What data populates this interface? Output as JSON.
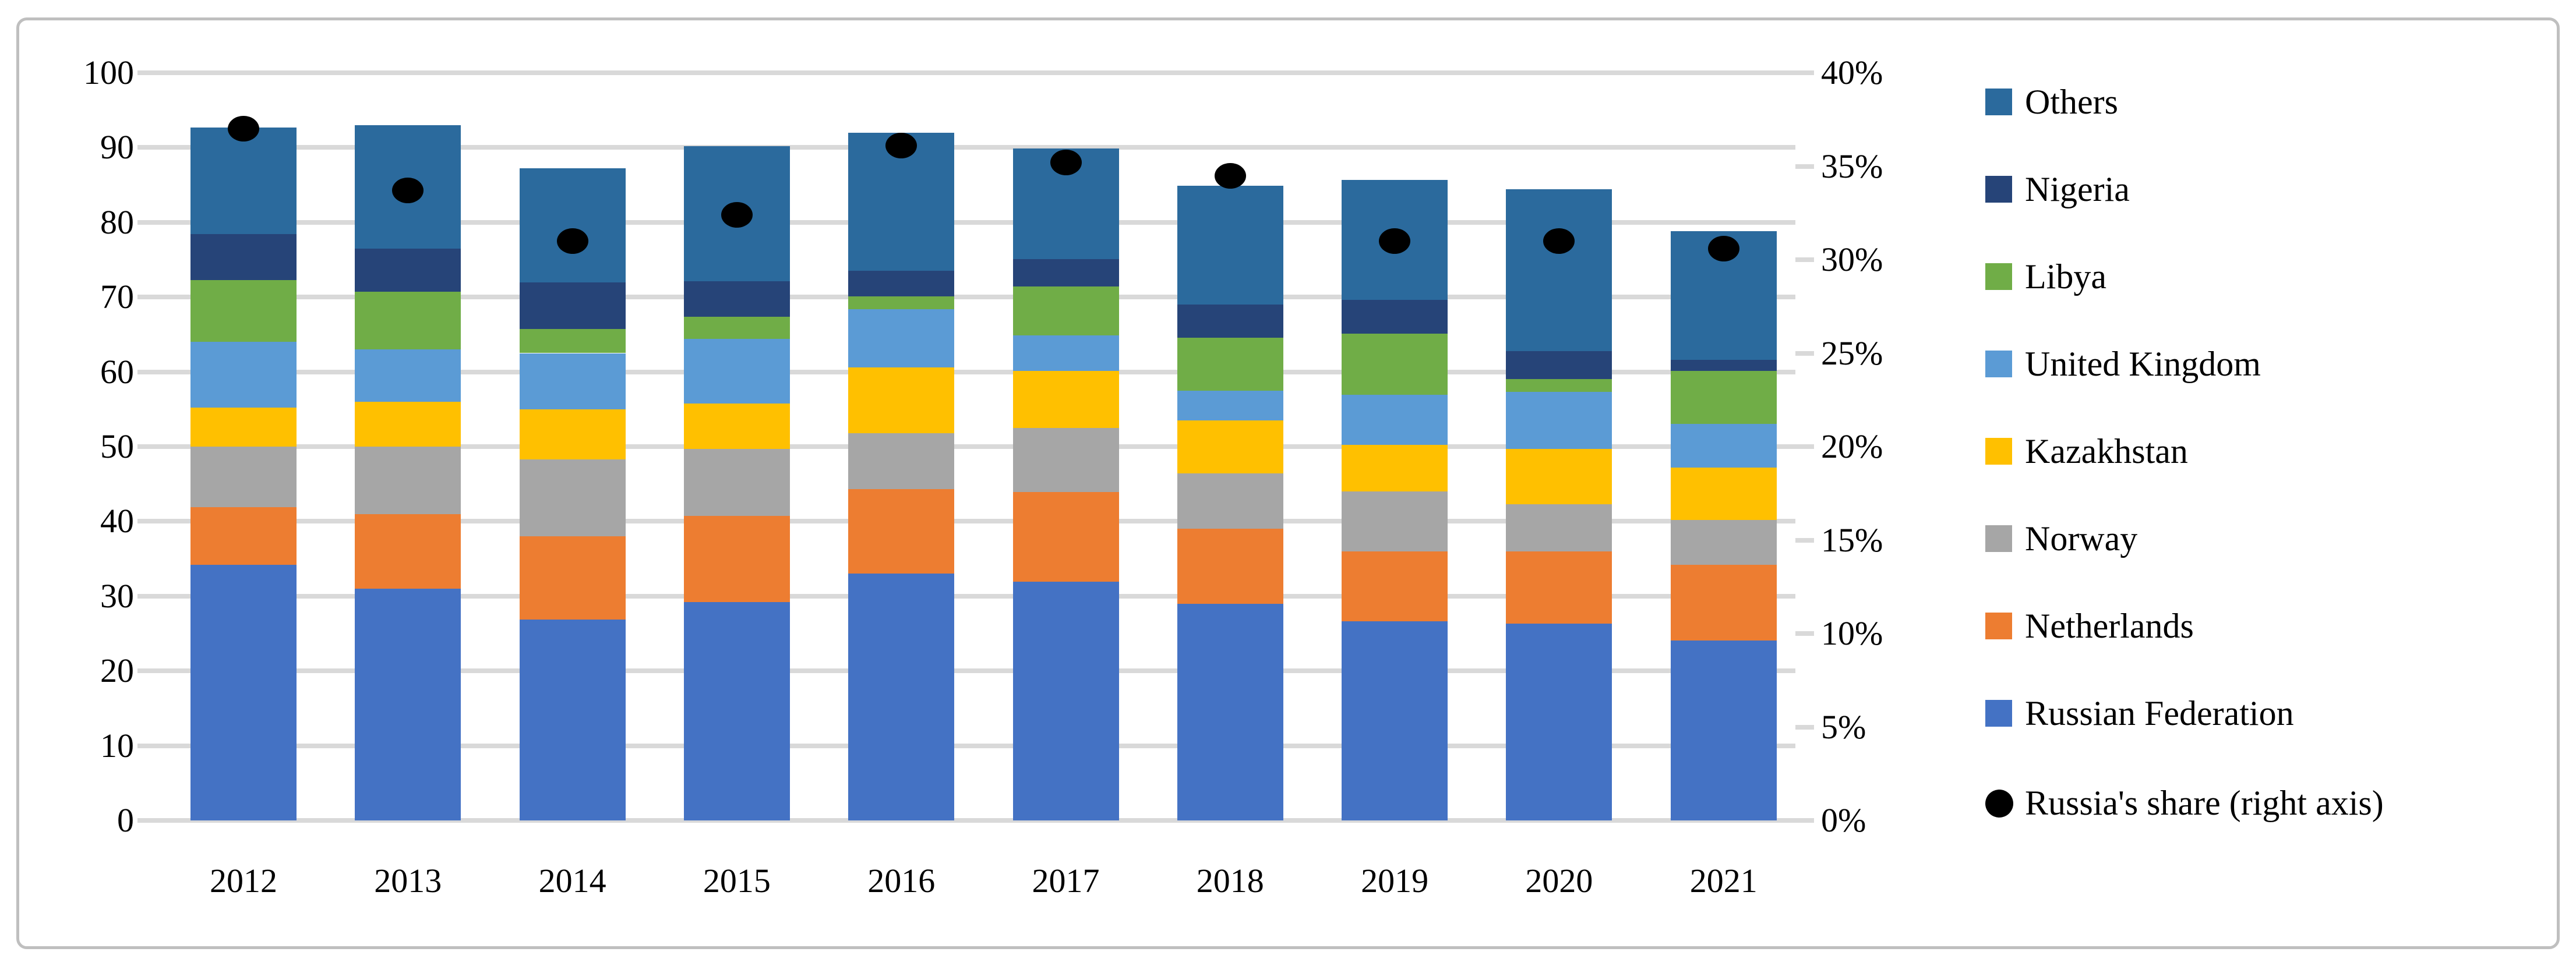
{
  "figure": {
    "kind": "stacked-column-chart-with-secondary-axis",
    "background": "#ffffff",
    "frame_color": "#BFBFBF",
    "gridline_color": "#D9D9D9",
    "text_color": "#000000"
  },
  "chart_data": {
    "type": "bar",
    "subtype": "stacked-columns-with-dot-markers",
    "title": "",
    "xlabel": "",
    "ylabel": "",
    "categories": [
      "2012",
      "2013",
      "2014",
      "2015",
      "2016",
      "2017",
      "2018",
      "2019",
      "2020",
      "2021"
    ],
    "series": [
      {
        "name": "russian-federation",
        "label": "Russian Federation",
        "color": "#4472C4",
        "values": [
          34.2,
          31.0,
          26.9,
          29.2,
          33.0,
          31.9,
          29.0,
          26.6,
          26.3,
          24.1
        ]
      },
      {
        "name": "netherlands",
        "label": "Netherlands",
        "color": "#ED7D31",
        "values": [
          7.7,
          10.0,
          11.1,
          11.5,
          11.3,
          12.0,
          10.0,
          9.4,
          9.7,
          10.1
        ]
      },
      {
        "name": "norway",
        "label": "Norway",
        "color": "#A6A6A6",
        "values": [
          8.1,
          9.0,
          10.3,
          9.0,
          7.5,
          8.6,
          7.4,
          8.0,
          6.3,
          6.0
        ]
      },
      {
        "name": "kazakhstan",
        "label": "Kazakhstan",
        "color": "#FFC000",
        "values": [
          5.2,
          6.0,
          6.7,
          6.1,
          8.8,
          7.6,
          7.1,
          6.2,
          7.4,
          7.0
        ]
      },
      {
        "name": "united-kingdom",
        "label": "United Kingdom",
        "color": "#5B9BD5",
        "values": [
          8.8,
          7.0,
          7.5,
          8.6,
          7.8,
          4.8,
          4.0,
          6.7,
          7.6,
          5.8
        ]
      },
      {
        "name": "libya",
        "label": "Libya",
        "color": "#70AD47",
        "values": [
          8.3,
          7.7,
          3.2,
          3.0,
          1.7,
          6.5,
          7.1,
          8.2,
          1.7,
          7.1
        ]
      },
      {
        "name": "nigeria",
        "label": "Nigeria",
        "color": "#264478",
        "values": [
          6.1,
          5.8,
          6.3,
          4.7,
          3.4,
          3.7,
          4.4,
          4.5,
          3.8,
          1.5
        ]
      },
      {
        "name": "others",
        "label": "Others",
        "color": "#2B6A9D",
        "values": [
          14.3,
          16.5,
          15.2,
          18.1,
          18.5,
          14.8,
          15.9,
          16.1,
          21.6,
          17.2
        ]
      }
    ],
    "dot_series": {
      "name": "russia-share",
      "label": "Russia's share (right axis)",
      "color": "#000000",
      "axis": "right",
      "values_pct": [
        37.0,
        33.7,
        31.0,
        32.4,
        36.1,
        35.2,
        34.5,
        31.0,
        31.0,
        30.6
      ]
    },
    "left_axis": {
      "min": 0,
      "max": 100,
      "step": 10,
      "tick_labels": [
        "100",
        "90",
        "80",
        "70",
        "60",
        "50",
        "40",
        "30",
        "20",
        "10",
        "0"
      ]
    },
    "right_axis": {
      "min": 0,
      "max": 40,
      "step": 5,
      "tick_labels": [
        "40%",
        "35%",
        "30%",
        "25%",
        "20%",
        "15%",
        "10%",
        "5%",
        "0%"
      ]
    },
    "legend_position": "right",
    "grid": true,
    "legend": [
      {
        "label": "Others",
        "marker": "square",
        "color": "#2B6A9D"
      },
      {
        "label": "Nigeria",
        "marker": "square",
        "color": "#264478"
      },
      {
        "label": "Libya",
        "marker": "square",
        "color": "#70AD47"
      },
      {
        "label": "United Kingdom",
        "marker": "square",
        "color": "#5B9BD5"
      },
      {
        "label": "Kazakhstan",
        "marker": "square",
        "color": "#FFC000"
      },
      {
        "label": "Norway",
        "marker": "square",
        "color": "#A6A6A6"
      },
      {
        "label": "Netherlands",
        "marker": "square",
        "color": "#ED7D31"
      },
      {
        "label": "Russian Federation",
        "marker": "square",
        "color": "#4472C4"
      },
      {
        "label": "Russia's share (right axis)",
        "marker": "circle",
        "color": "#000000"
      }
    ]
  }
}
